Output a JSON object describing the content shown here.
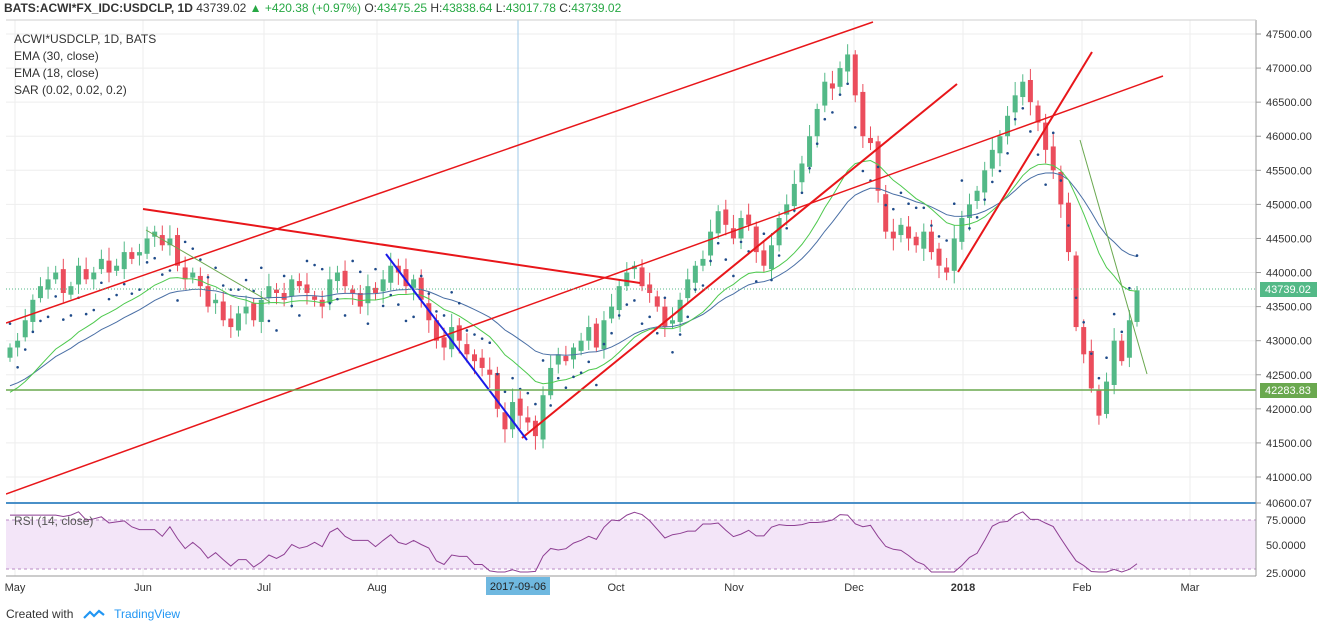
{
  "header": {
    "symbol": "BATS:ACWI*FX_IDC:USDCLP, 1D",
    "last": "43739.02",
    "change": "+420.38 (+0.97%)",
    "o_label": "O:",
    "open": "43475.25",
    "h_label": "H:",
    "high": "43838.64",
    "l_label": "L:",
    "low": "43017.78",
    "c_label": "C:",
    "close": "43739.02"
  },
  "legend": [
    "ACWI*USDCLP, 1D, BATS",
    "EMA (30, close)",
    "EMA (18, close)",
    "SAR (0.02, 0.02, 0.2)"
  ],
  "rsi": {
    "label": "RSI (14, close)",
    "ticks": [
      "75.0000",
      "50.0000",
      "25.0000"
    ]
  },
  "price_axis": {
    "ticks": [
      "47500.00",
      "47000.00",
      "46500.00",
      "46000.00",
      "45500.00",
      "45000.00",
      "44500.00",
      "44000.00",
      "43500.00",
      "43000.00",
      "42500.00",
      "42000.00",
      "41500.00",
      "41000.00",
      "40600.07"
    ],
    "last_price_badge": "43739.02",
    "support_badge": "42283.83"
  },
  "time_axis": {
    "labels": [
      "May",
      "Jun",
      "Jul",
      "Aug",
      "2017-09-06",
      "Oct",
      "Nov",
      "Dec",
      "2018",
      "Feb",
      "Mar"
    ]
  },
  "colors": {
    "up": "#53b987",
    "down": "#eb4d5c",
    "trendline": "#e8161a",
    "blue_line": "#1a1ae8",
    "ema30": "#4a6fa5",
    "ema18": "#4ec94e",
    "sar": "#1f4b8a",
    "support": "#6aa84f",
    "rsi": "#8e3f93",
    "rsi_band": "#f3e5f8",
    "accent": "#2196f3"
  },
  "footer": {
    "created_with": "Created with",
    "brand": "TradingView",
    "brand_icon": "tradingview-logo-icon"
  },
  "chart_data": {
    "type": "candlestick",
    "series_names": [
      "EMA (30, close)",
      "EMA (18, close)",
      "SAR (0.02, 0.02, 0.2)",
      "RSI (14, close)"
    ],
    "y_range": [
      40600,
      47700
    ],
    "horizontal_level": 42283.83,
    "last_close": 43739.02,
    "closes": [
      42900,
      43000,
      43300,
      43600,
      43800,
      43900,
      44000,
      43700,
      43800,
      44100,
      43900,
      44000,
      44200,
      44000,
      44100,
      44300,
      44200,
      44300,
      44500,
      44600,
      44400,
      44500,
      44100,
      43900,
      44000,
      43800,
      43500,
      43600,
      43300,
      43200,
      43400,
      43500,
      43300,
      43600,
      43800,
      43700,
      43600,
      43900,
      43800,
      43700,
      43600,
      43500,
      43900,
      44000,
      43800,
      43700,
      43500,
      43800,
      43700,
      43900,
      44100,
      44000,
      43800,
      43900,
      43600,
      43300,
      43000,
      42900,
      43200,
      43000,
      42800,
      42700,
      42600,
      42500,
      42000,
      41700,
      42100,
      41900,
      41800,
      41600,
      42200,
      42600,
      42800,
      42700,
      42900,
      43000,
      43200,
      42900,
      43300,
      43500,
      43800,
      44000,
      44100,
      43800,
      43700,
      43500,
      43200,
      43300,
      43600,
      43900,
      44100,
      44200,
      44600,
      44900,
      44700,
      44500,
      44800,
      44700,
      44300,
      44100,
      44400,
      44800,
      45000,
      45300,
      45600,
      46000,
      46400,
      46800,
      46700,
      47000,
      47200,
      46600,
      46000,
      45900,
      45200,
      44600,
      44500,
      44700,
      44500,
      44400,
      44600,
      44300,
      44100,
      44000,
      44500,
      44800,
      45000,
      45200,
      45500,
      45800,
      46000,
      46300,
      46600,
      46800,
      46500,
      46200,
      45800,
      45500,
      45000,
      44300,
      43200,
      42800,
      42300,
      41900,
      42400,
      43000,
      42700,
      43300,
      43739
    ]
  }
}
